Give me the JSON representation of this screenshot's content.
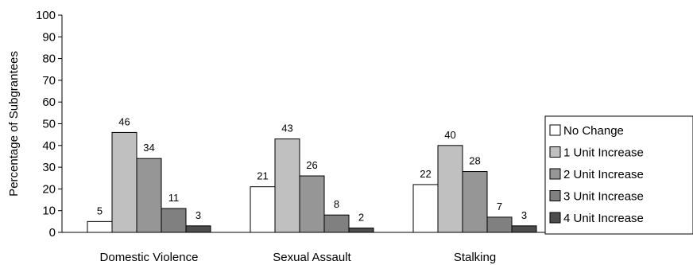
{
  "chart_data": {
    "type": "bar",
    "ylabel": "Percentage of Subgrantees",
    "xlabel": "",
    "ylim": [
      0,
      100
    ],
    "yticks": [
      0,
      10,
      20,
      30,
      40,
      50,
      60,
      70,
      80,
      90,
      100
    ],
    "categories": [
      "Domestic Violence",
      "Sexual Assault",
      "Stalking"
    ],
    "series": [
      {
        "name": "No Change",
        "color": "#ffffff",
        "values": [
          5,
          21,
          22
        ]
      },
      {
        "name": "1 Unit Increase",
        "color": "#c0c0c0",
        "values": [
          46,
          43,
          40
        ]
      },
      {
        "name": "2 Unit Increase",
        "color": "#969696",
        "values": [
          34,
          26,
          28
        ]
      },
      {
        "name": "3 Unit Increase",
        "color": "#808080",
        "values": [
          11,
          8,
          7
        ]
      },
      {
        "name": "4 Unit Increase",
        "color": "#4d4d4d",
        "values": [
          3,
          2,
          3
        ]
      }
    ],
    "data_labels": true,
    "grid": false,
    "legend_position": "right"
  }
}
